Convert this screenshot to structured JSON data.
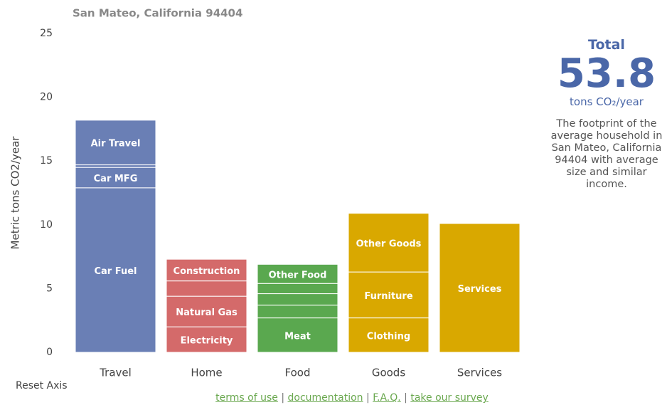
{
  "chart_data": {
    "type": "stacked_bar",
    "title": "San Mateo, California 94404",
    "ylabel": "Metric tons CO2/year",
    "categories": [
      "Travel",
      "Home",
      "Food",
      "Goods",
      "Services"
    ],
    "bars": [
      {
        "color": "#6a7fb5",
        "segments": [
          {
            "label": "Car Fuel",
            "value": 12.9
          },
          {
            "label": "Car MFG",
            "value": 1.6
          },
          {
            "label": null,
            "value": 0.2
          },
          {
            "label": "Air Travel",
            "value": 3.5
          }
        ]
      },
      {
        "color": "#d46a6a",
        "segments": [
          {
            "label": "Electricity",
            "value": 2.0
          },
          {
            "label": "Natural Gas",
            "value": 2.4
          },
          {
            "label": null,
            "value": 1.2
          },
          {
            "label": "Construction",
            "value": 1.7
          }
        ]
      },
      {
        "color": "#5aa84f",
        "segments": [
          {
            "label": "Meat",
            "value": 2.7
          },
          {
            "label": null,
            "value": 1.0
          },
          {
            "label": null,
            "value": 0.9
          },
          {
            "label": null,
            "value": 0.8
          },
          {
            "label": "Other Food",
            "value": 1.5
          }
        ]
      },
      {
        "color": "#d9a800",
        "segments": [
          {
            "label": "Clothing",
            "value": 2.7
          },
          {
            "label": "Furniture",
            "value": 3.6
          },
          {
            "label": "Other Goods",
            "value": 4.6
          }
        ]
      },
      {
        "color": "#d9a800",
        "segments": [
          {
            "label": "Services",
            "value": 10.1
          }
        ]
      }
    ],
    "ylim": [
      0,
      25
    ],
    "yticks": [
      0,
      5,
      10,
      15,
      20,
      25
    ]
  },
  "total": {
    "heading": "Total",
    "value": "53.8",
    "unit": "tons CO₂/year",
    "description": "The footprint of the average household in San Mateo, California 94404 with average size and similar income."
  },
  "reset": "Reset Axis",
  "links": [
    "terms of use",
    "documentation",
    "F.A.Q.",
    "take our survey"
  ]
}
